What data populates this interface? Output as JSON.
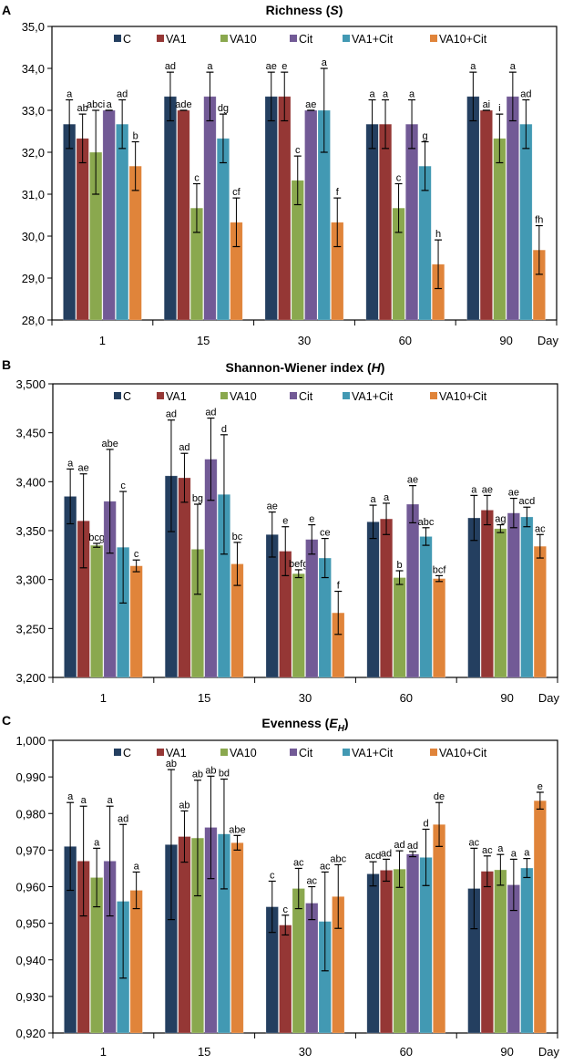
{
  "chart_data": [
    {
      "type": "bar",
      "panel_label": "A",
      "title": {
        "name": "Richness",
        "symbol": "S",
        "subscript": ""
      },
      "xlabel": "Day",
      "categories": [
        "1",
        "15",
        "30",
        "60",
        "90"
      ],
      "ylim": [
        28.0,
        35.0
      ],
      "yticks": [
        28,
        29,
        30,
        31,
        32,
        33,
        34,
        35
      ],
      "ytick_labels": [
        "28,0",
        "29,0",
        "30,0",
        "31,0",
        "32,0",
        "33,0",
        "34,0",
        "35,0"
      ],
      "legend_position": "top",
      "series": [
        {
          "name": "C",
          "color": "#243F60",
          "values": [
            32.67,
            33.33,
            33.33,
            32.67,
            33.33
          ],
          "errors": [
            0.58,
            0.58,
            0.58,
            0.58,
            0.58
          ],
          "letters": [
            "a",
            "ad",
            "ae",
            "a",
            "a"
          ]
        },
        {
          "name": "VA1",
          "color": "#953735",
          "values": [
            32.33,
            33.0,
            33.33,
            32.67,
            33.0
          ],
          "errors": [
            0.58,
            0,
            0.58,
            0.58,
            0
          ],
          "letters": [
            "ab",
            "ade",
            "e",
            "a",
            "ai"
          ]
        },
        {
          "name": "VA10",
          "color": "#8AA84E",
          "values": [
            32.0,
            30.67,
            31.33,
            30.67,
            32.33
          ],
          "errors": [
            1.0,
            0.58,
            0.58,
            0.58,
            0.58
          ],
          "letters": [
            "abci",
            "c",
            "c",
            "c",
            "i"
          ]
        },
        {
          "name": "Cit",
          "color": "#725A96",
          "values": [
            33.0,
            33.33,
            33.0,
            32.67,
            33.33
          ],
          "errors": [
            0,
            0.58,
            0,
            0.58,
            0.58
          ],
          "letters": [
            "a",
            "a",
            "ae",
            "a",
            "a"
          ]
        },
        {
          "name": "VA1+Cit",
          "color": "#4299B3",
          "values": [
            32.67,
            32.33,
            33.0,
            31.67,
            32.67
          ],
          "errors": [
            0.58,
            0.58,
            1.0,
            0.58,
            0.58
          ],
          "letters": [
            "ad",
            "dg",
            "a",
            "g",
            "ad"
          ]
        },
        {
          "name": "VA10+Cit",
          "color": "#E0843A",
          "values": [
            31.67,
            30.33,
            30.33,
            29.33,
            29.67
          ],
          "errors": [
            0.58,
            0.58,
            0.58,
            0.58,
            0.58
          ],
          "letters": [
            "b",
            "cf",
            "f",
            "h",
            "fh"
          ]
        }
      ]
    },
    {
      "type": "bar",
      "panel_label": "B",
      "title": {
        "name": "Shannon-Wiener index",
        "symbol": "H",
        "subscript": ""
      },
      "xlabel": "Day",
      "categories": [
        "1",
        "15",
        "30",
        "60",
        "90"
      ],
      "ylim": [
        3.2,
        3.5
      ],
      "yticks": [
        3.2,
        3.25,
        3.3,
        3.35,
        3.4,
        3.45,
        3.5
      ],
      "ytick_labels": [
        "3,200",
        "3,250",
        "3,300",
        "3,350",
        "3,400",
        "3,450",
        "3,500"
      ],
      "legend_position": "top",
      "series": [
        {
          "name": "C",
          "color": "#243F60",
          "values": [
            3.385,
            3.406,
            3.346,
            3.359,
            3.363
          ],
          "errors": [
            0.028,
            0.057,
            0.023,
            0.017,
            0.023
          ],
          "letters": [
            "a",
            "ad",
            "ae",
            "a",
            "a"
          ]
        },
        {
          "name": "VA1",
          "color": "#953735",
          "values": [
            3.36,
            3.404,
            3.329,
            3.362,
            3.371
          ],
          "errors": [
            0.048,
            0.025,
            0.025,
            0.016,
            0.015
          ],
          "letters": [
            "ae",
            "ad",
            "e",
            "a",
            "ae"
          ]
        },
        {
          "name": "VA10",
          "color": "#8AA84E",
          "values": [
            3.335,
            3.331,
            3.306,
            3.302,
            3.352
          ],
          "errors": [
            0.002,
            0.046,
            0.004,
            0.007,
            0.004
          ],
          "letters": [
            "bcg",
            "bg",
            "befg",
            "b",
            "ag"
          ]
        },
        {
          "name": "Cit",
          "color": "#725A96",
          "values": [
            3.38,
            3.423,
            3.341,
            3.377,
            3.368
          ],
          "errors": [
            0.053,
            0.042,
            0.015,
            0.019,
            0.015
          ],
          "letters": [
            "abe",
            "ad",
            "e",
            "ae",
            "ae"
          ]
        },
        {
          "name": "VA1+Cit",
          "color": "#4299B3",
          "values": [
            3.333,
            3.387,
            3.322,
            3.344,
            3.364
          ],
          "errors": [
            0.057,
            0.061,
            0.02,
            0.009,
            0.01
          ],
          "letters": [
            "c",
            "d",
            "ce",
            "abc",
            "acd"
          ]
        },
        {
          "name": "VA10+Cit",
          "color": "#E0843A",
          "values": [
            3.314,
            3.316,
            3.266,
            3.301,
            3.334
          ],
          "errors": [
            0.006,
            0.022,
            0.022,
            0.003,
            0.012
          ],
          "letters": [
            "c",
            "bc",
            "f",
            "bcf",
            "ac"
          ]
        }
      ]
    },
    {
      "type": "bar",
      "panel_label": "C",
      "title": {
        "name": "Evenness",
        "symbol": "E",
        "subscript": "H"
      },
      "xlabel": "Day",
      "categories": [
        "1",
        "15",
        "30",
        "60",
        "90"
      ],
      "ylim": [
        0.92,
        1.0
      ],
      "yticks": [
        0.92,
        0.93,
        0.94,
        0.95,
        0.96,
        0.97,
        0.98,
        0.99,
        1.0
      ],
      "ytick_labels": [
        "0,920",
        "0,930",
        "0,940",
        "0,950",
        "0,960",
        "0,970",
        "0,980",
        "0,990",
        "1,000"
      ],
      "legend_position": "top",
      "series": [
        {
          "name": "C",
          "color": "#243F60",
          "values": [
            0.971,
            0.9715,
            0.9545,
            0.9635,
            0.9595
          ],
          "errors": [
            0.012,
            0.0205,
            0.007,
            0.0033,
            0.011
          ],
          "letters": [
            "a",
            "ab",
            "c",
            "acd",
            "ac"
          ]
        },
        {
          "name": "VA1",
          "color": "#953735",
          "values": [
            0.967,
            0.9737,
            0.9495,
            0.9645,
            0.9642
          ],
          "errors": [
            0.015,
            0.007,
            0.0027,
            0.003,
            0.0042
          ],
          "letters": [
            "a",
            "ab",
            "c",
            "ad",
            "ac"
          ]
        },
        {
          "name": "VA10",
          "color": "#8AA84E",
          "values": [
            0.9625,
            0.9733,
            0.9595,
            0.9648,
            0.9646
          ],
          "errors": [
            0.008,
            0.0158,
            0.0055,
            0.005,
            0.0042
          ],
          "letters": [
            "a",
            "ab",
            "ac",
            "ad",
            "a"
          ]
        },
        {
          "name": "Cit",
          "color": "#725A96",
          "values": [
            0.967,
            0.9762,
            0.9555,
            0.9689,
            0.9605
          ],
          "errors": [
            0.015,
            0.014,
            0.0045,
            0.0007,
            0.007
          ],
          "letters": [
            "a",
            "ab",
            "ac",
            "ad",
            "a"
          ]
        },
        {
          "name": "VA1+Cit",
          "color": "#4299B3",
          "values": [
            0.956,
            0.9744,
            0.9505,
            0.968,
            0.9651
          ],
          "errors": [
            0.021,
            0.015,
            0.0135,
            0.0077,
            0.0026
          ],
          "letters": [
            "ad",
            "bd",
            "ac",
            "d",
            "a"
          ]
        },
        {
          "name": "VA10+Cit",
          "color": "#E0843A",
          "values": [
            0.959,
            0.972,
            0.9573,
            0.977,
            0.9835
          ],
          "errors": [
            0.005,
            0.002,
            0.0087,
            0.006,
            0.0023
          ],
          "letters": [
            "a",
            "abe",
            "abc",
            "de",
            "e"
          ]
        }
      ]
    }
  ]
}
